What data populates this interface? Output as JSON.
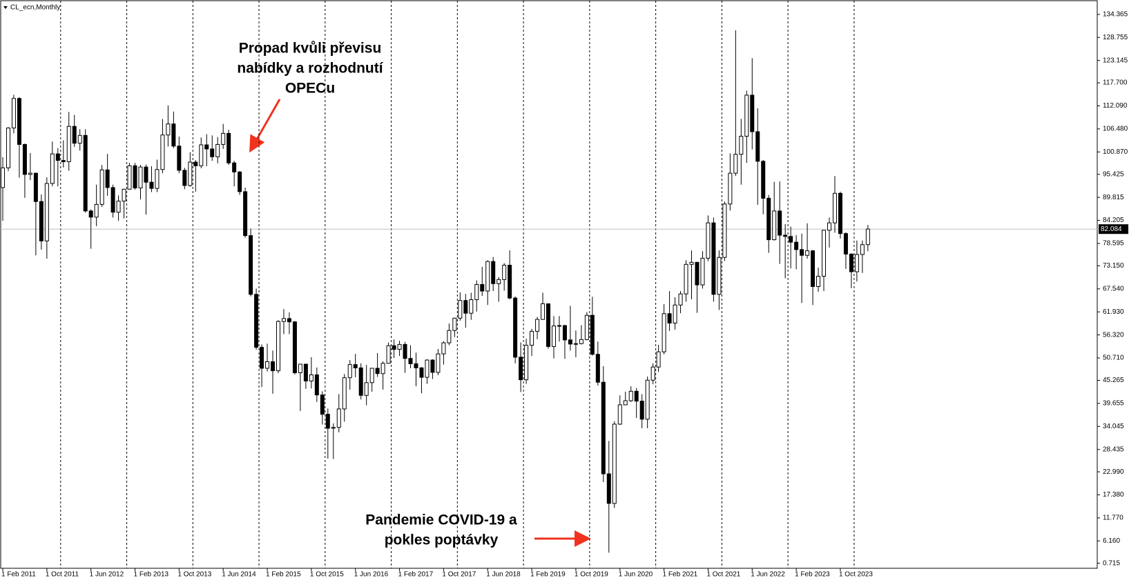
{
  "chart_data": {
    "type": "candlestick",
    "title": "CL_ecn,Monthly",
    "categories": [
      "1 Feb 2011",
      null,
      null,
      null,
      null,
      null,
      null,
      null,
      "1 Oct 2011",
      null,
      null,
      null,
      null,
      null,
      null,
      null,
      "1 Jun 2012",
      null,
      null,
      null,
      null,
      null,
      null,
      null,
      "1 Feb 2013",
      null,
      null,
      null,
      null,
      null,
      null,
      null,
      "1 Oct 2013",
      null,
      null,
      null,
      null,
      null,
      null,
      null,
      "1 Jun 2014",
      null,
      null,
      null,
      null,
      null,
      null,
      null,
      "1 Feb 2015",
      null,
      null,
      null,
      null,
      null,
      null,
      null,
      "1 Oct 2015",
      null,
      null,
      null,
      null,
      null,
      null,
      null,
      "1 Jun 2016",
      null,
      null,
      null,
      null,
      null,
      null,
      null,
      "1 Feb 2017",
      null,
      null,
      null,
      null,
      null,
      null,
      null,
      "1 Oct 2017",
      null,
      null,
      null,
      null,
      null,
      null,
      null,
      "1 Jun 2018",
      null,
      null,
      null,
      null,
      null,
      null,
      null,
      "1 Feb 2019",
      null,
      null,
      null,
      null,
      null,
      null,
      null,
      "1 Oct 2019",
      null,
      null,
      null,
      null,
      null,
      null,
      null,
      "1 Jun 2020",
      null,
      null,
      null,
      null,
      null,
      null,
      null,
      "1 Feb 2021",
      null,
      null,
      null,
      null,
      null,
      null,
      null,
      "1 Oct 2021",
      null,
      null,
      null,
      null,
      null,
      null,
      null,
      "1 Jun 2022",
      null,
      null,
      null,
      null,
      null,
      null,
      null,
      "1 Feb 2023",
      null,
      null,
      null,
      null,
      null,
      null,
      null,
      "1 Oct 2023",
      null,
      null,
      null,
      null,
      null
    ],
    "open": [
      92.2,
      97.0,
      106.7,
      113.9,
      102.7,
      95.4,
      95.7,
      88.8,
      79.2,
      93.2,
      100.4,
      98.8,
      98.5,
      107.1,
      103.0,
      104.9,
      86.5,
      85.0,
      88.1,
      96.5,
      92.2,
      86.2,
      88.9,
      91.8,
      97.5,
      92.1,
      97.2,
      93.5,
      92.0,
      96.6,
      105.0,
      107.7,
      102.3,
      96.4,
      92.7,
      98.4,
      97.5,
      102.6,
      101.6,
      99.7,
      102.7,
      105.4,
      98.2,
      96.0,
      91.2,
      80.5,
      66.2,
      53.3,
      48.2,
      49.8,
      47.6,
      59.6,
      60.3,
      59.5,
      47.1,
      49.2,
      45.1,
      46.6,
      41.7,
      37.0,
      33.6,
      33.8,
      38.3,
      45.9,
      49.1,
      48.3,
      41.6,
      44.7,
      48.2,
      46.9,
      49.4,
      53.7,
      52.8,
      54.0,
      50.6,
      49.3,
      48.3,
      46.0,
      50.2,
      47.2,
      51.7,
      54.4,
      57.4,
      60.4,
      64.7,
      61.6,
      64.9,
      68.6,
      67.0,
      74.2,
      68.8,
      69.8,
      73.3,
      65.3,
      50.9,
      45.4,
      53.8,
      57.2,
      60.1,
      63.9,
      53.5,
      58.5,
      58.6,
      55.1,
      54.1,
      54.2,
      55.2,
      61.1,
      51.6,
      44.8,
      22.5,
      15.3,
      34.6,
      39.3,
      40.3,
      42.6,
      40.2,
      35.8,
      45.3,
      48.5,
      52.2,
      61.5,
      59.2,
      63.6,
      66.3,
      73.5,
      74.0,
      68.5,
      75.0,
      83.6,
      66.2,
      75.2,
      88.2,
      95.7,
      100.3,
      104.7,
      114.7,
      105.8,
      98.6,
      89.6,
      79.5,
      86.5,
      80.6,
      80.3,
      78.9,
      77.1,
      75.7,
      76.8,
      68.1,
      70.6,
      81.8,
      83.6,
      90.8,
      81.0,
      76.0,
      71.7,
      75.9,
      78.3
    ],
    "high": [
      99.6,
      106.9,
      114.8,
      114.2,
      102.9,
      100.6,
      95.8,
      90.5,
      94.7,
      103.4,
      101.8,
      103.7,
      110.6,
      109.9,
      106.4,
      106.4,
      86.9,
      92.9,
      97.7,
      100.4,
      92.9,
      90.3,
      91.9,
      98.2,
      98.2,
      97.7,
      97.8,
      97.4,
      99.0,
      108.9,
      112.2,
      110.7,
      104.6,
      97.0,
      100.8,
      98.9,
      104.4,
      105.2,
      104.9,
      104.5,
      107.7,
      106.3,
      98.7,
      96.2,
      92.2,
      82.2,
      67.6,
      54.0,
      54.2,
      52.5,
      59.9,
      62.6,
      61.8,
      59.7,
      49.2,
      49.3,
      50.9,
      48.4,
      42.6,
      38.4,
      34.8,
      41.9,
      46.8,
      50.2,
      51.7,
      49.4,
      49.0,
      48.3,
      51.9,
      49.9,
      54.5,
      55.2,
      54.9,
      54.6,
      53.8,
      52.0,
      48.5,
      50.4,
      50.4,
      52.9,
      54.8,
      59.1,
      60.5,
      66.7,
      66.3,
      66.6,
      69.6,
      72.9,
      74.5,
      75.3,
      70.4,
      73.8,
      76.9,
      65.7,
      54.5,
      55.4,
      57.8,
      60.7,
      66.6,
      64.0,
      60.9,
      60.9,
      58.8,
      63.4,
      57.4,
      58.7,
      61.9,
      65.6,
      54.7,
      48.7,
      30.5,
      35.3,
      41.6,
      42.5,
      43.8,
      43.4,
      41.9,
      46.2,
      49.4,
      53.9,
      63.8,
      67.0,
      65.5,
      67.0,
      74.5,
      76.9,
      74.1,
      76.7,
      85.4,
      84.9,
      76.9,
      88.8,
      100.5,
      130.5,
      108.9,
      115.8,
      123.7,
      111.5,
      98.9,
      90.4,
      93.6,
      93.7,
      83.3,
      82.7,
      80.6,
      81.0,
      83.5,
      77.0,
      72.7,
      81.8,
      84.9,
      95.0,
      91.2,
      81.3,
      76.2,
      79.3,
      79.3,
      83.1
    ],
    "low": [
      84.1,
      96.2,
      105.4,
      94.6,
      89.7,
      94.0,
      75.7,
      77.1,
      74.9,
      92.5,
      92.5,
      97.1,
      96.3,
      102.1,
      101.2,
      86.1,
      77.3,
      82.8,
      87.5,
      90.2,
      84.9,
      84.1,
      84.7,
      91.7,
      91.7,
      89.3,
      85.6,
      91.1,
      91.1,
      95.7,
      102.2,
      101.8,
      95.7,
      91.8,
      92.4,
      91.2,
      96.9,
      97.4,
      98.7,
      98.1,
      101.6,
      97.7,
      92.5,
      90.4,
      80.0,
      65.7,
      52.7,
      43.6,
      47.4,
      42.0,
      47.0,
      56.5,
      56.5,
      46.7,
      37.8,
      43.2,
      43.3,
      40.0,
      34.5,
      26.2,
      26.1,
      32.6,
      35.2,
      43.0,
      46.0,
      40.6,
      39.2,
      42.5,
      46.1,
      43.0,
      49.3,
      50.7,
      51.2,
      47.1,
      48.2,
      43.8,
      42.1,
      44.4,
      45.6,
      46.5,
      49.1,
      53.8,
      55.8,
      59.8,
      58.1,
      60.0,
      62.0,
      65.8,
      63.6,
      67.0,
      64.4,
      67.1,
      65.0,
      49.4,
      42.4,
      44.4,
      51.2,
      55.3,
      60.0,
      53.0,
      50.6,
      54.7,
      50.5,
      52.5,
      50.9,
      54.0,
      55.0,
      51.3,
      44.0,
      20.5,
      3.3,
      14.2,
      34.4,
      39.2,
      40.0,
      36.1,
      33.6,
      33.6,
      44.3,
      47.3,
      51.6,
      57.3,
      57.6,
      61.6,
      64.4,
      65.0,
      61.7,
      67.6,
      74.3,
      64.4,
      62.4,
      74.3,
      86.6,
      95.0,
      92.9,
      98.2,
      101.5,
      88.0,
      85.7,
      76.3,
      79.3,
      73.6,
      70.1,
      72.5,
      72.3,
      64.1,
      74.9,
      63.6,
      66.8,
      67.0,
      77.6,
      81.2,
      79.8,
      72.4,
      67.7,
      69.3,
      71.4,
      76.7
    ],
    "close": [
      97.0,
      106.7,
      113.9,
      102.7,
      95.4,
      95.7,
      88.8,
      79.2,
      93.2,
      100.4,
      98.8,
      98.5,
      107.1,
      103.0,
      104.9,
      86.5,
      85.0,
      88.1,
      96.5,
      92.2,
      86.2,
      88.9,
      91.8,
      97.5,
      92.1,
      97.2,
      93.5,
      92.0,
      96.6,
      105.0,
      107.7,
      102.3,
      96.4,
      92.7,
      98.4,
      97.5,
      102.6,
      101.6,
      99.7,
      102.7,
      105.4,
      98.2,
      96.0,
      91.2,
      80.5,
      66.2,
      53.3,
      48.2,
      49.8,
      47.6,
      59.6,
      60.3,
      59.5,
      47.1,
      49.2,
      45.1,
      46.6,
      41.7,
      37.0,
      33.6,
      33.8,
      38.3,
      45.9,
      49.1,
      48.3,
      41.6,
      44.7,
      48.2,
      46.9,
      49.4,
      53.7,
      52.8,
      54.0,
      50.6,
      49.3,
      48.3,
      46.0,
      50.2,
      47.2,
      51.7,
      54.4,
      57.4,
      60.4,
      64.7,
      61.6,
      64.9,
      68.6,
      67.0,
      74.2,
      68.8,
      69.8,
      73.3,
      65.3,
      50.9,
      45.4,
      53.8,
      57.2,
      60.1,
      63.9,
      53.5,
      58.5,
      58.6,
      55.1,
      54.1,
      54.2,
      55.2,
      61.1,
      51.6,
      44.8,
      22.5,
      15.3,
      34.6,
      39.3,
      40.3,
      42.6,
      40.2,
      35.8,
      45.3,
      48.5,
      52.2,
      61.5,
      59.2,
      63.6,
      66.3,
      73.5,
      74.0,
      68.5,
      75.0,
      83.6,
      66.2,
      75.2,
      88.2,
      95.7,
      100.3,
      104.7,
      114.7,
      105.8,
      98.6,
      89.6,
      79.5,
      86.5,
      80.6,
      80.3,
      78.9,
      77.1,
      75.7,
      76.8,
      68.1,
      70.6,
      81.8,
      83.6,
      90.8,
      81.0,
      76.0,
      71.7,
      75.9,
      78.3,
      82.1
    ],
    "up_color": "#ffffff",
    "down_color": "#000000",
    "wick_color": "#000000",
    "current_price": 82.084,
    "ylim": [
      -0.5,
      137.7
    ],
    "yticks": [
      0.715,
      {
        "value": 6.16,
        "label": "6.160"
      },
      {
        "value": 11.77,
        "label": "11.770"
      },
      {
        "value": 17.38,
        "label": "17.380"
      },
      {
        "value": 22.99,
        "label": "22.990"
      },
      28.435,
      34.045,
      39.655,
      45.265,
      {
        "value": 50.71,
        "label": "50.710"
      },
      {
        "value": 56.32,
        "label": "56.320"
      },
      {
        "value": 61.93,
        "label": "61.930"
      },
      {
        "value": 67.54,
        "label": "67.540"
      },
      {
        "value": 73.15,
        "label": "73.150"
      },
      78.595,
      84.205,
      89.815,
      95.425,
      {
        "value": 100.87,
        "label": "100.870"
      },
      {
        "value": 106.48,
        "label": "106.480"
      },
      {
        "value": 112.09,
        "label": "112.090"
      },
      {
        "value": 117.7,
        "label": "117.700"
      },
      123.145,
      128.755,
      134.365
    ],
    "annotations": [
      {
        "lines": [
          "Propad kvůli převisu",
          "nabídky a rozhodnutí",
          "OPECu"
        ]
      },
      {
        "lines": [
          "Pandemie COVID-19 a",
          "pokles poptávky"
        ]
      }
    ]
  }
}
